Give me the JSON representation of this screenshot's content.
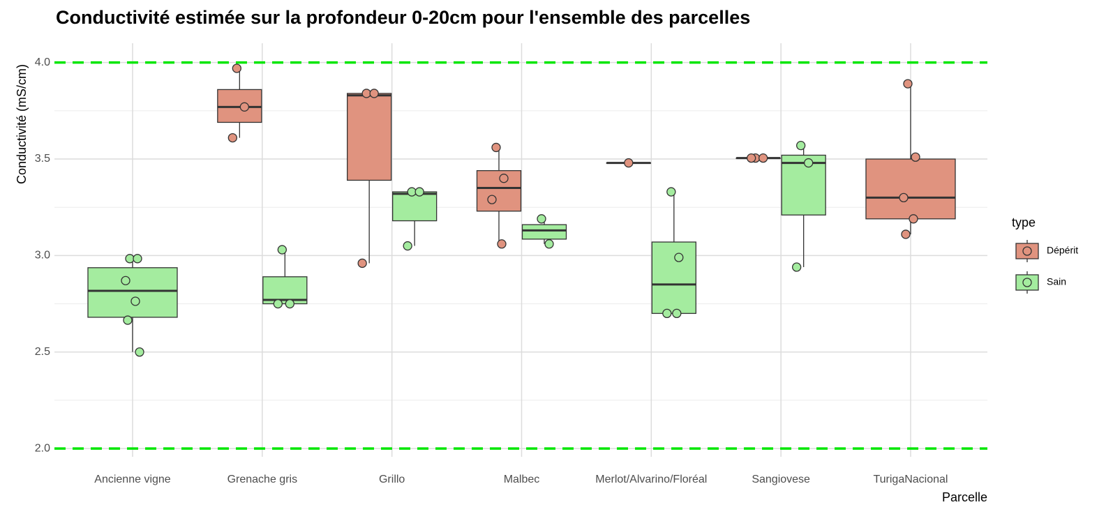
{
  "chart_data": {
    "type": "boxplot",
    "title": "Conductivité estimée sur la profondeur 0-20cm pour l'ensemble des parcelles",
    "x_label": "Parcelle",
    "y_label": "Conductivité (mS/cm)",
    "legend_title": "type",
    "legend_position": "right",
    "categories": [
      "Ancienne vigne",
      "Grenache gris",
      "Grillo",
      "Malbec",
      "Merlot/Alvarino/Floréal",
      "Sangiovese",
      "TurigaNacional"
    ],
    "ylim": [
      1.957,
      4.1
    ],
    "yticks": [
      {
        "value": 2,
        "label": "2.0"
      },
      2.5,
      {
        "value": 3,
        "label": "3.0"
      },
      3.5,
      {
        "value": 4,
        "label": "4.0"
      }
    ],
    "minor_yticks": [
      2.25,
      2.75,
      3.25,
      3.75
    ],
    "grid": true,
    "reference_lines": {
      "values": [
        2,
        4
      ],
      "color": "#00e600"
    },
    "series": [
      {
        "name": "Dépérit",
        "color": "#e0937f",
        "boxes": [
          null,
          {
            "min": 3.61,
            "q1": 3.69,
            "median": 3.77,
            "q3": 3.86,
            "max": 3.97,
            "points": [
              3.97,
              3.77,
              3.61
            ]
          },
          {
            "min": 2.96,
            "q1": 3.39,
            "median": 3.83,
            "q3": 3.84,
            "max": 3.84,
            "points": [
              3.84,
              3.84,
              2.96
            ]
          },
          {
            "min": 3.06,
            "q1": 3.23,
            "median": 3.35,
            "q3": 3.44,
            "max": 3.56,
            "points": [
              3.56,
              3.4,
              3.29,
              3.06
            ]
          },
          {
            "min": 3.48,
            "q1": 3.48,
            "median": 3.48,
            "q3": 3.48,
            "max": 3.48,
            "points": [
              3.48
            ]
          },
          {
            "min": 3.505,
            "q1": 3.505,
            "median": 3.505,
            "q3": 3.505,
            "max": 3.505,
            "points": [
              3.505,
              3.505,
              3.505
            ]
          },
          {
            "min": 3.11,
            "q1": 3.19,
            "median": 3.3,
            "q3": 3.5,
            "max": 3.89,
            "points": [
              3.89,
              3.51,
              3.3,
              3.19,
              3.11
            ]
          }
        ]
      },
      {
        "name": "Sain",
        "color": "#a4ec9f",
        "boxes": [
          {
            "min": 2.5,
            "q1": 2.68,
            "median": 2.817,
            "q3": 2.937,
            "max": 2.984,
            "points": [
              2.984,
              2.984,
              2.87,
              2.763,
              2.665,
              2.5
            ]
          },
          {
            "min": 2.75,
            "q1": 2.75,
            "median": 2.77,
            "q3": 2.89,
            "max": 3.03,
            "points": [
              3.03,
              2.75,
              2.75
            ]
          },
          {
            "min": 3.05,
            "q1": 3.18,
            "median": 3.32,
            "q3": 3.33,
            "max": 3.33,
            "points": [
              3.33,
              3.33,
              3.05
            ]
          },
          {
            "min": 3.06,
            "q1": 3.085,
            "median": 3.13,
            "q3": 3.16,
            "max": 3.19,
            "points": [
              3.19,
              3.06
            ]
          },
          {
            "min": 2.7,
            "q1": 2.7,
            "median": 2.85,
            "q3": 3.07,
            "max": 3.33,
            "points": [
              3.33,
              2.99,
              2.7,
              2.7
            ]
          },
          {
            "min": 2.94,
            "q1": 3.21,
            "median": 3.48,
            "q3": 3.52,
            "max": 3.57,
            "points": [
              3.57,
              3.48,
              2.94
            ]
          },
          null
        ]
      }
    ]
  }
}
